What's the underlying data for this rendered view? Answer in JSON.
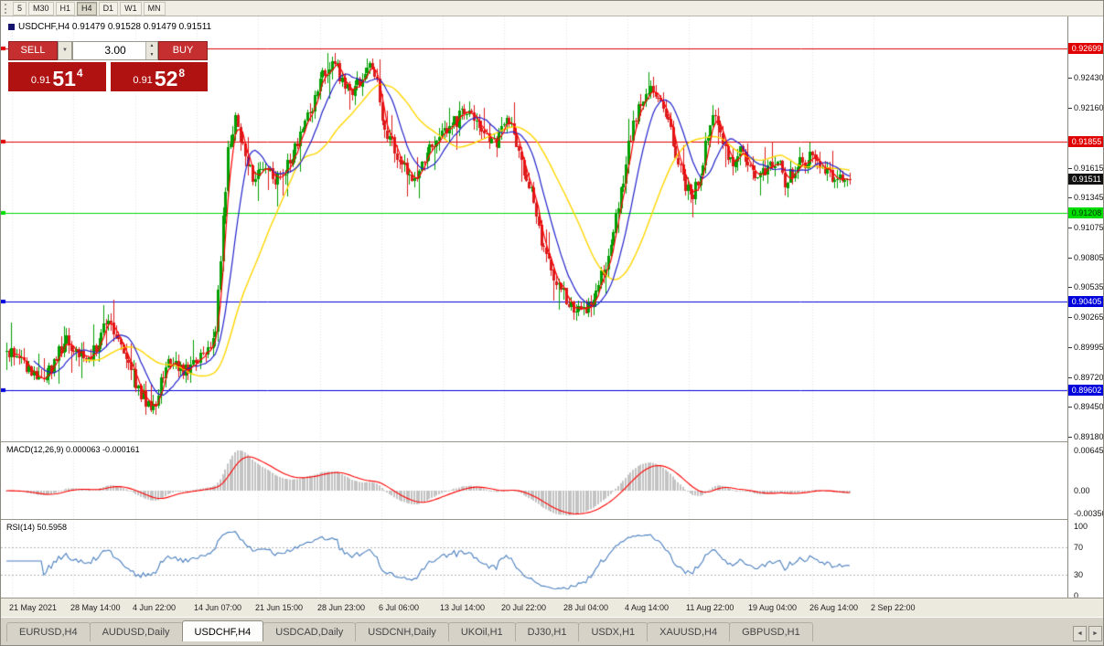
{
  "colors": {
    "chrome_bg": "#ece9df",
    "chart_bg": "#ffffff",
    "grid": "#e3e3e3",
    "candle_up": "#00a000",
    "candle_down": "#dc1c1c",
    "ma_fast": "#ff0000",
    "ma_mid": "#2222cc",
    "ma_slow": "#ffd700",
    "macd_hist": "#c3c3c3",
    "macd_signal": "#ff0000",
    "rsi_line": "#4a7fbf",
    "level_red": "#e00000",
    "level_green": "#00dd00",
    "level_blue": "#0000dd",
    "tag_current_bg": "#111111",
    "trade_button_bg": "#c62f2f",
    "trade_price_bg": "#b01212"
  },
  "toolbar": {
    "timeframes": [
      "5",
      "M30",
      "H1",
      "H4",
      "D1",
      "W1",
      "MN"
    ],
    "active": "H4"
  },
  "chart": {
    "title": "USDCHF,H4 0.91479 0.91528 0.91479 0.91511",
    "symbol": "USDCHF",
    "timeframe": "H4"
  },
  "trade": {
    "sell_label": "SELL",
    "buy_label": "BUY",
    "volume": "3.00",
    "sell_price": {
      "small": "0.91",
      "big": "51",
      "sup": "4"
    },
    "buy_price": {
      "small": "0.91",
      "big": "52",
      "sup": "8"
    }
  },
  "price_axis": [
    {
      "label": "0.92699",
      "type": "tag",
      "bg": "#e00000",
      "fg": "#ffffff"
    },
    {
      "label": "0.92430",
      "type": "tick"
    },
    {
      "label": "0.92160",
      "type": "tick"
    },
    {
      "label": "0.91855",
      "type": "tag",
      "bg": "#e00000",
      "fg": "#ffffff"
    },
    {
      "label": "0.91615",
      "type": "tick"
    },
    {
      "label": "0.91511",
      "type": "tag",
      "bg": "#111111",
      "fg": "#ffffff"
    },
    {
      "label": "0.91345",
      "type": "tick"
    },
    {
      "label": "0.91208",
      "type": "tag",
      "bg": "#00dd00",
      "fg": "#003300"
    },
    {
      "label": "0.91075",
      "type": "tick"
    },
    {
      "label": "0.90805",
      "type": "tick"
    },
    {
      "label": "0.90535",
      "type": "tick"
    },
    {
      "label": "0.90405",
      "type": "tag",
      "bg": "#0000dd",
      "fg": "#ffffff"
    },
    {
      "label": "0.90265",
      "type": "tick"
    },
    {
      "label": "0.89995",
      "type": "tick"
    },
    {
      "label": "0.89720",
      "type": "tick"
    },
    {
      "label": "0.89602",
      "type": "tag",
      "bg": "#0000dd",
      "fg": "#ffffff"
    },
    {
      "label": "0.89450",
      "type": "tick"
    },
    {
      "label": "0.89180",
      "type": "tick"
    }
  ],
  "levels": [
    {
      "price": 0.92699,
      "color": "#e00000"
    },
    {
      "price": 0.91855,
      "color": "#e00000"
    },
    {
      "price": 0.91208,
      "color": "#00dd00"
    },
    {
      "price": 0.90405,
      "color": "#0000dd"
    },
    {
      "price": 0.89602,
      "color": "#0000dd"
    }
  ],
  "current_price": {
    "value": 0.91511,
    "label": "0.91511"
  },
  "macd": {
    "label": "MACD(12,26,9) 0.000063 -0.000161",
    "axis": [
      "0.006451",
      "0.00",
      "-0.00350"
    ]
  },
  "rsi": {
    "label": "RSI(14) 50.5958",
    "axis": [
      100,
      70,
      30,
      0
    ],
    "levels": [
      70,
      30
    ]
  },
  "time_axis": [
    "21 May 2021",
    "28 May 14:00",
    "4 Jun 22:00",
    "14 Jun 07:00",
    "21 Jun 15:00",
    "28 Jun 23:00",
    "6 Jul 06:00",
    "13 Jul 14:00",
    "20 Jul 22:00",
    "28 Jul 04:00",
    "4 Aug 14:00",
    "11 Aug 22:00",
    "19 Aug 04:00",
    "26 Aug 14:00",
    "2 Sep 22:00"
  ],
  "tabs": {
    "items": [
      "EURUSD,H4",
      "AUDUSD,Daily",
      "USDCHF,H4",
      "USDCAD,Daily",
      "USDCNH,Daily",
      "UKOil,H1",
      "DJ30,H1",
      "USDX,H1",
      "XAUUSD,H4",
      "GBPUSD,H1"
    ],
    "active": "USDCHF,H4",
    "scroll_left": "◄",
    "scroll_right": "►"
  },
  "chart_data": {
    "type": "candlestick",
    "symbol": "USDCHF",
    "period": "H4",
    "ohlc_last": {
      "open": 0.91479,
      "high": 0.91528,
      "low": 0.91479,
      "close": 0.91511
    },
    "price_range": [
      0.89147,
      0.9298
    ],
    "candles_extent": 0.796,
    "price_path": [
      [
        0.003,
        0.8996
      ],
      [
        0.022,
        0.8978
      ],
      [
        0.037,
        0.8972
      ],
      [
        0.056,
        0.9006
      ],
      [
        0.073,
        0.899
      ],
      [
        0.086,
        0.8997
      ],
      [
        0.097,
        0.9032
      ],
      [
        0.106,
        0.8999
      ],
      [
        0.125,
        0.8962
      ],
      [
        0.138,
        0.894
      ],
      [
        0.151,
        0.8986
      ],
      [
        0.168,
        0.8979
      ],
      [
        0.185,
        0.8993
      ],
      [
        0.197,
        0.9012
      ],
      [
        0.203,
        0.9095
      ],
      [
        0.209,
        0.918
      ],
      [
        0.216,
        0.9208
      ],
      [
        0.225,
        0.9175
      ],
      [
        0.234,
        0.915
      ],
      [
        0.244,
        0.9162
      ],
      [
        0.254,
        0.915
      ],
      [
        0.267,
        0.9165
      ],
      [
        0.278,
        0.919
      ],
      [
        0.289,
        0.9218
      ],
      [
        0.299,
        0.9248
      ],
      [
        0.31,
        0.9262
      ],
      [
        0.316,
        0.9242
      ],
      [
        0.325,
        0.9228
      ],
      [
        0.336,
        0.9246
      ],
      [
        0.347,
        0.9252
      ],
      [
        0.356,
        0.9202
      ],
      [
        0.365,
        0.9182
      ],
      [
        0.375,
        0.9165
      ],
      [
        0.385,
        0.915
      ],
      [
        0.396,
        0.9172
      ],
      [
        0.408,
        0.9188
      ],
      [
        0.42,
        0.92
      ],
      [
        0.432,
        0.9212
      ],
      [
        0.442,
        0.9202
      ],
      [
        0.453,
        0.9188
      ],
      [
        0.463,
        0.9185
      ],
      [
        0.472,
        0.9207
      ],
      [
        0.48,
        0.919
      ],
      [
        0.489,
        0.916
      ],
      [
        0.497,
        0.9136
      ],
      [
        0.506,
        0.9092
      ],
      [
        0.515,
        0.9066
      ],
      [
        0.525,
        0.9048
      ],
      [
        0.535,
        0.9036
      ],
      [
        0.544,
        0.9028
      ],
      [
        0.553,
        0.904
      ],
      [
        0.561,
        0.9062
      ],
      [
        0.57,
        0.9088
      ],
      [
        0.578,
        0.913
      ],
      [
        0.587,
        0.918
      ],
      [
        0.596,
        0.9218
      ],
      [
        0.604,
        0.9231
      ],
      [
        0.613,
        0.9228
      ],
      [
        0.622,
        0.921
      ],
      [
        0.63,
        0.9182
      ],
      [
        0.639,
        0.915
      ],
      [
        0.647,
        0.9133
      ],
      [
        0.654,
        0.9155
      ],
      [
        0.661,
        0.9185
      ],
      [
        0.668,
        0.9206
      ],
      [
        0.677,
        0.918
      ],
      [
        0.685,
        0.9168
      ],
      [
        0.694,
        0.9176
      ],
      [
        0.703,
        0.9163
      ],
      [
        0.711,
        0.9155
      ],
      [
        0.72,
        0.9162
      ],
      [
        0.728,
        0.9169
      ],
      [
        0.735,
        0.9147
      ],
      [
        0.744,
        0.9162
      ],
      [
        0.753,
        0.9168
      ],
      [
        0.761,
        0.9172
      ],
      [
        0.77,
        0.916
      ],
      [
        0.778,
        0.9154
      ],
      [
        0.787,
        0.9148
      ],
      [
        0.796,
        0.9151
      ]
    ],
    "indicators": [
      {
        "name": "MA fast",
        "color": "#ff0000"
      },
      {
        "name": "MA medium",
        "color": "#2222cc"
      },
      {
        "name": "MA slow",
        "color": "#ffd700"
      },
      {
        "name": "MACD(12,26,9)",
        "values": "0.000063 -0.000161"
      },
      {
        "name": "RSI(14)",
        "value": 50.5958
      }
    ]
  }
}
